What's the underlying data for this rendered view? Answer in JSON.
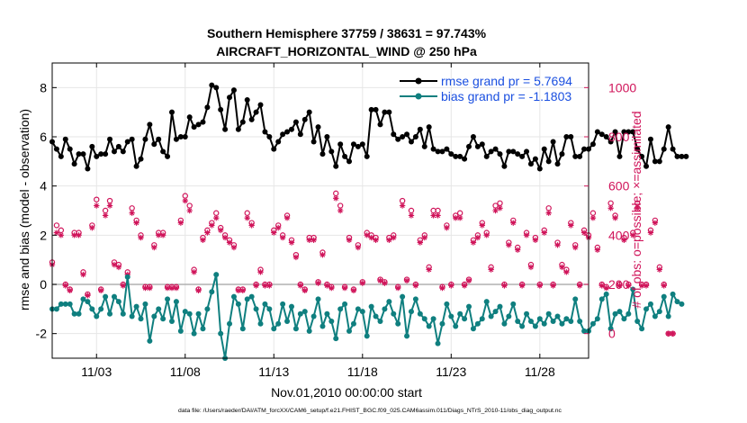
{
  "colors": {
    "rmse": "#000000",
    "bias": "#0f7f7f",
    "obs": "#d0145a",
    "legend_text": "#1a4fe0",
    "zero_line": "#b0b0b0",
    "frame": "#000000"
  },
  "chart_data": {
    "type": "line",
    "title_line1": "Southern Hemisphere 37759 / 38631 = 97.743%",
    "title_line2": "AIRCRAFT_HORIZONTAL_WIND @ 250 hPa",
    "xlabel": "Nov.01,2010 00:00:00 start",
    "ylabel_left": "rmse and bias (model - observation)",
    "ylabel_right": "# of obs: o=possible; ×=assimilated",
    "footnote": "data file: /Users/raeder/DAI/ATM_forcXX/CAM6_setup/f.e21.FHIST_BGC.f09_025.CAM6assim.011/Diags_NTrS_2010-11/obs_diag_output.nc",
    "x_range": [
      0.5,
      30.75
    ],
    "y_left_range": [
      -3,
      9
    ],
    "y_right_range": [
      -100,
      1100
    ],
    "x_ticks": [
      {
        "x": 3,
        "label": "11/03"
      },
      {
        "x": 8,
        "label": "11/08"
      },
      {
        "x": 13,
        "label": "11/13"
      },
      {
        "x": 18,
        "label": "11/18"
      },
      {
        "x": 23,
        "label": "11/23"
      },
      {
        "x": 28,
        "label": "11/28"
      }
    ],
    "y_left_ticks": [
      -2,
      0,
      2,
      4,
      6,
      8
    ],
    "y_right_ticks": [
      0,
      200,
      400,
      600,
      800,
      1000
    ],
    "grid": true,
    "legend_placement": "top-right",
    "series": [
      {
        "name": "rmse grand pr = 5.7694",
        "axis": "left",
        "x_start": 0.5,
        "x_step": 0.25,
        "values": [
          5.8,
          5.5,
          5.2,
          5.9,
          5.5,
          4.9,
          5.3,
          5.3,
          4.7,
          5.6,
          5.2,
          5.3,
          5.3,
          5.9,
          5.4,
          5.6,
          5.4,
          5.8,
          5.9,
          4.8,
          5.1,
          5.9,
          6.5,
          5.7,
          5.9,
          5.4,
          5.2,
          7.0,
          5.9,
          6.0,
          6.0,
          6.8,
          6.4,
          6.5,
          6.6,
          7.2,
          8.1,
          8.0,
          7.1,
          6.3,
          7.6,
          7.9,
          6.3,
          6.6,
          7.5,
          6.7,
          7.0,
          7.3,
          6.2,
          6.0,
          5.5,
          5.8,
          6.1,
          6.2,
          6.3,
          6.6,
          6.1,
          6.7,
          7.0,
          5.8,
          6.4,
          5.3,
          6.0,
          5.4,
          4.8,
          5.7,
          5.2,
          5.0,
          5.7,
          5.6,
          5.7,
          5.2,
          7.1,
          7.1,
          6.5,
          7.0,
          7.0,
          6.1,
          5.9,
          6.0,
          6.1,
          5.8,
          6.0,
          6.3,
          5.6,
          6.4,
          5.5,
          5.4,
          5.4,
          5.5,
          5.3,
          5.2,
          5.2,
          5.1,
          5.6,
          6.0,
          5.6,
          5.7,
          5.2,
          5.4,
          5.5,
          5.3,
          4.8,
          5.4,
          5.4,
          5.3,
          5.2,
          5.4,
          4.9,
          5.1,
          4.7,
          5.5,
          5.0,
          5.8,
          4.9,
          5.3,
          6.0,
          6.0,
          5.2,
          5.2,
          5.5,
          5.5,
          5.7,
          6.2,
          6.1,
          6.0,
          5.8,
          6.2,
          5.2,
          6.2,
          6.2,
          6.2,
          5.5,
          5.2,
          4.8,
          5.9,
          5.0,
          5.0,
          5.5,
          6.4,
          5.5,
          5.2,
          5.2,
          5.2
        ]
      },
      {
        "name": "bias grand pr = -1.1803",
        "axis": "left",
        "x_start": 0.5,
        "x_step": 0.25,
        "values": [
          -1.0,
          -1.0,
          -0.8,
          -0.8,
          -0.8,
          -1.2,
          -1.2,
          -0.6,
          -0.7,
          -1.0,
          -1.3,
          -1.0,
          -0.5,
          -1.2,
          -0.5,
          -0.7,
          -1.2,
          0.3,
          -1.3,
          -0.9,
          -1.4,
          -0.8,
          -2.3,
          -1.3,
          -1.0,
          -1.4,
          -0.6,
          -1.5,
          -0.7,
          -1.9,
          -1.1,
          -1.2,
          -2.0,
          -1.2,
          -1.8,
          -1.0,
          -0.3,
          0.4,
          -2.0,
          -3.0,
          -1.6,
          -0.5,
          -0.8,
          -1.8,
          -0.6,
          -0.5,
          -1.0,
          -1.6,
          -0.8,
          -1.0,
          -1.8,
          -1.6,
          -0.8,
          -1.5,
          -0.9,
          -1.8,
          -1.2,
          -1.1,
          -1.9,
          -1.3,
          -0.6,
          -1.7,
          -1.2,
          -1.5,
          -2.2,
          -1.0,
          -0.8,
          -1.9,
          -1.6,
          -1.0,
          -1.1,
          -2.1,
          -0.9,
          -1.3,
          -1.5,
          -1.0,
          -0.7,
          -1.2,
          -1.6,
          -0.5,
          -2.1,
          -1.1,
          -0.6,
          -1.2,
          -1.4,
          -1.7,
          -1.4,
          -2.4,
          -1.6,
          -0.8,
          -1.3,
          -1.7,
          -1.2,
          -1.4,
          -0.9,
          -1.8,
          -1.6,
          -1.4,
          -0.7,
          -1.3,
          -1.1,
          -0.9,
          -1.6,
          -1.3,
          -0.8,
          -1.5,
          -1.7,
          -1.2,
          -1.5,
          -1.7,
          -1.4,
          -1.6,
          -1.2,
          -1.5,
          -1.3,
          -1.6,
          -1.4,
          -1.5,
          -0.6,
          -1.5,
          -1.9,
          -1.9,
          -1.6,
          -1.4,
          -0.6,
          -0.4,
          -1.8,
          -1.2,
          -1.1,
          -1.4,
          -1.2,
          -0.2,
          -1.5,
          -1.8,
          -1.0,
          -0.8,
          -1.3,
          -1.1,
          -0.5,
          -1.3,
          -0.4,
          -0.7,
          -0.8
        ]
      },
      {
        "name": "obs possible",
        "axis": "right",
        "marker": "circle",
        "x_start": 0.5,
        "x_step": 0.25,
        "values": [
          290,
          440,
          420,
          200,
          180,
          410,
          410,
          250,
          160,
          440,
          545,
          180,
          500,
          540,
          290,
          280,
          200,
          250,
          510,
          460,
          400,
          190,
          190,
          360,
          410,
          410,
          190,
          190,
          190,
          460,
          560,
          520,
          260,
          180,
          390,
          420,
          450,
          490,
          430,
          400,
          380,
          360,
          180,
          180,
          490,
          450,
          200,
          260,
          200,
          200,
          420,
          440,
          400,
          480,
          380,
          320,
          200,
          180,
          390,
          390,
          210,
          330,
          200,
          190,
          570,
          520,
          190,
          390,
          180,
          360,
          210,
          410,
          400,
          390,
          220,
          210,
          390,
          400,
          190,
          540,
          220,
          500,
          200,
          380,
          400,
          270,
          500,
          500,
          190,
          440,
          200,
          480,
          490,
          200,
          220,
          380,
          400,
          450,
          410,
          270,
          520,
          530,
          200,
          370,
          460,
          350,
          200,
          410,
          280,
          390,
          200,
          420,
          510,
          200,
          370,
          280,
          260,
          450,
          360,
          200,
          420,
          400,
          490,
          350,
          200,
          190,
          530,
          480,
          200,
          390,
          200,
          410,
          530,
          200,
          200,
          420,
          460,
          270,
          200,
          0,
          0
        ]
      },
      {
        "name": "obs assimilated",
        "axis": "right",
        "marker": "asterisk",
        "x_start": 0.5,
        "x_step": 0.25,
        "values": [
          280,
          410,
          400,
          195,
          175,
          400,
          400,
          240,
          155,
          430,
          520,
          175,
          480,
          520,
          280,
          270,
          195,
          240,
          490,
          450,
          390,
          185,
          185,
          350,
          400,
          400,
          185,
          185,
          185,
          450,
          540,
          500,
          250,
          175,
          380,
          410,
          440,
          470,
          420,
          390,
          370,
          350,
          175,
          175,
          470,
          440,
          195,
          250,
          195,
          195,
          410,
          430,
          390,
          470,
          370,
          310,
          195,
          175,
          380,
          380,
          205,
          320,
          195,
          185,
          550,
          500,
          185,
          380,
          175,
          350,
          205,
          400,
          390,
          380,
          215,
          205,
          380,
          390,
          185,
          520,
          215,
          480,
          195,
          370,
          390,
          260,
          480,
          480,
          185,
          430,
          195,
          470,
          470,
          195,
          215,
          370,
          390,
          440,
          400,
          260,
          500,
          510,
          195,
          360,
          450,
          340,
          195,
          400,
          270,
          380,
          195,
          410,
          490,
          195,
          360,
          270,
          250,
          440,
          350,
          195,
          410,
          390,
          470,
          340,
          195,
          185,
          510,
          470,
          195,
          380,
          195,
          400,
          510,
          195,
          195,
          410,
          450,
          260,
          195,
          0,
          0
        ]
      }
    ]
  }
}
